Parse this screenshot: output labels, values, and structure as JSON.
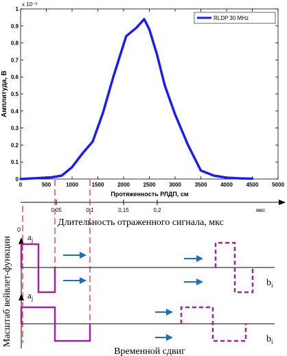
{
  "chart_data": {
    "type": "line",
    "x_exponent_label": "x 10⁻³",
    "xlabel": "Протяженность РЛДП, см",
    "ylabel": "Амплитуда, В",
    "xlim": [
      0,
      5000
    ],
    "ylim": [
      0,
      1
    ],
    "x_ticks": [
      0,
      500,
      1000,
      1500,
      2000,
      2500,
      3000,
      3500,
      4000,
      4500,
      5000
    ],
    "y_ticks": [
      0,
      0.1,
      0.2,
      0.3,
      0.4,
      0.5,
      0.6,
      0.7,
      0.8,
      0.9,
      1
    ],
    "y_tick_labels": [
      "0",
      "0.1",
      "0.2",
      "0.3",
      "0.4",
      "0.5",
      "0.6",
      "0.7",
      "0.8",
      "0.9",
      "1"
    ],
    "legend_position": "top-right",
    "series": [
      {
        "name": "RLDP 30 MHz",
        "color": "#1a1aff",
        "x": [
          0,
          300,
          600,
          800,
          1000,
          1200,
          1400,
          1600,
          1800,
          2050,
          2250,
          2400,
          2500,
          2650,
          2800,
          3000,
          3250,
          3500,
          3750,
          4000,
          4250,
          4500
        ],
        "y": [
          0.0,
          0.005,
          0.01,
          0.02,
          0.07,
          0.15,
          0.22,
          0.39,
          0.6,
          0.84,
          0.89,
          0.94,
          0.88,
          0.73,
          0.55,
          0.38,
          0.2,
          0.05,
          0.02,
          0.008,
          0.004,
          0.002
        ]
      }
    ],
    "duration_axis": {
      "unit": "мкс",
      "label": "Длительность отраженного сигнала, мкс",
      "ticks": [
        {
          "value": 0.05,
          "label": "0,05"
        },
        {
          "value": 0.1,
          "label": "0,1"
        },
        {
          "value": 0.15,
          "label": "0,15"
        },
        {
          "value": 0.2,
          "label": "0,2"
        }
      ]
    }
  },
  "wavelet_diagram": {
    "y_axis_label": "Масштаб вейвлет-функции",
    "x_axis_label": "Временной сдвиг",
    "origin_label": "0",
    "a_label": "a",
    "a_sub": "j",
    "b_label": "b",
    "b_sub": "i",
    "solid_color": "#a020a0",
    "arrow_color": "#1a6fc0",
    "guide_color": "#e02020"
  }
}
